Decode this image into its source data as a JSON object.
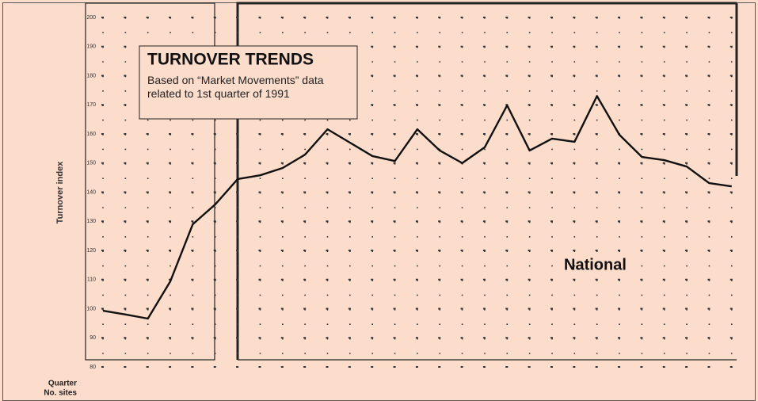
{
  "chart_data": {
    "type": "line",
    "title": "TURNOVER TRENDS",
    "subtitle": "Based on “Market Movements” data related to 1st quarter of 1991",
    "ylabel": "Turnover index",
    "annotation": "National",
    "row_labels": [
      "Quarter",
      "No. sites"
    ],
    "categories": [
      null,
      null,
      null,
      null,
      null,
      null,
      null,
      null,
      null,
      null,
      null,
      null,
      null,
      null,
      null,
      null,
      null,
      null,
      null,
      null,
      null,
      null,
      null,
      null,
      null,
      null,
      null,
      null,
      null
    ],
    "series": [
      {
        "name": "National",
        "color": "#111111",
        "values": [
          99.3,
          98,
          96.6,
          109.4,
          129,
          135.8,
          144.5,
          145.8,
          148.3,
          152.9,
          161.6,
          157,
          152.4,
          150.7,
          161.6,
          154.3,
          150,
          155.4,
          169.8,
          154.3,
          158.4,
          157.3,
          173,
          159.7,
          152.1,
          151,
          148.8,
          143.1,
          142
        ]
      }
    ],
    "ylim": [
      80,
      200
    ],
    "yticks": [
      80,
      90,
      100,
      110,
      120,
      130,
      140,
      150,
      160,
      170,
      180,
      190,
      200
    ],
    "grid": true
  }
}
